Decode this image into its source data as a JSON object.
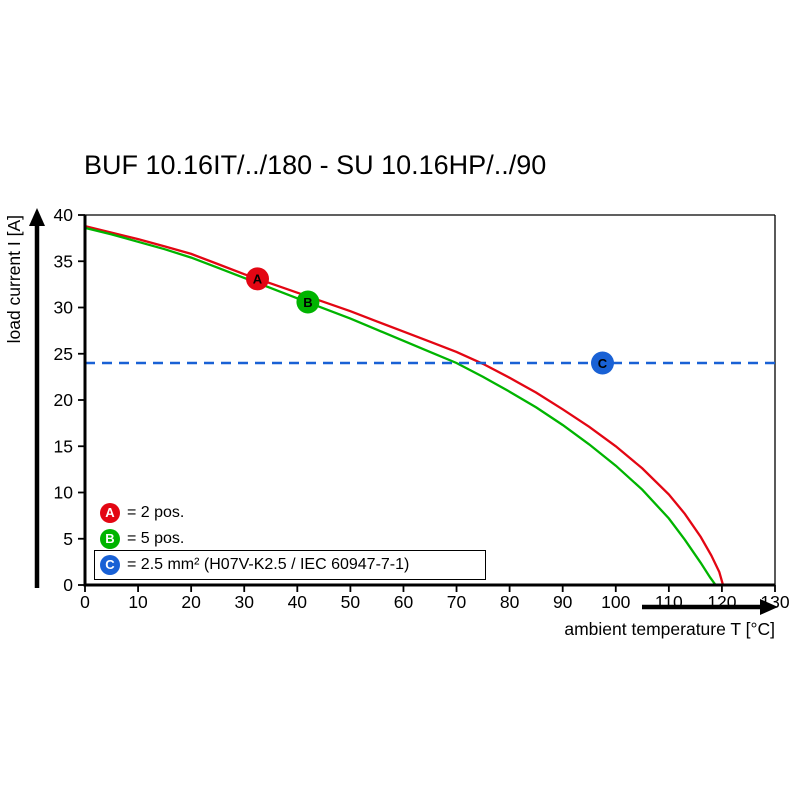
{
  "title": "BUF 10.16IT/../180 - SU 10.16HP/../90",
  "axes": {
    "xlabel": "ambient temperature T [°C]",
    "ylabel": "load current I [A]"
  },
  "legend": {
    "items": [
      {
        "label": "A",
        "color": "#e30613",
        "text": "= 2 pos."
      },
      {
        "label": "B",
        "color": "#00b400",
        "text": "= 5 pos."
      },
      {
        "label": "C",
        "color": "#1961d5",
        "text": "= 2.5 mm² (H07V-K2.5 / IEC 60947-7-1)"
      }
    ]
  },
  "chart_data": {
    "type": "line",
    "title": "BUF 10.16IT/../180 - SU 10.16HP/../90",
    "xlabel": "ambient temperature T [°C]",
    "ylabel": "load current I [A]",
    "xlim": [
      0,
      130
    ],
    "ylim": [
      0,
      40
    ],
    "x_ticks": [
      0,
      10,
      20,
      30,
      40,
      50,
      60,
      70,
      80,
      90,
      100,
      110,
      120,
      130
    ],
    "y_ticks": [
      0,
      5,
      10,
      15,
      20,
      25,
      30,
      35,
      40
    ],
    "grid": false,
    "legend_position": "bottom-left-inside",
    "series": [
      {
        "name": "A = 2 pos.",
        "color": "#e30613",
        "style": "solid",
        "points": [
          [
            0,
            38.8
          ],
          [
            5,
            38.1
          ],
          [
            10,
            37.4
          ],
          [
            15,
            36.6
          ],
          [
            20,
            35.8
          ],
          [
            25,
            34.7
          ],
          [
            30,
            33.6
          ],
          [
            35,
            32.6
          ],
          [
            40,
            31.6
          ],
          [
            45,
            30.6
          ],
          [
            50,
            29.6
          ],
          [
            55,
            28.5
          ],
          [
            60,
            27.4
          ],
          [
            65,
            26.3
          ],
          [
            70,
            25.2
          ],
          [
            75,
            23.9
          ],
          [
            80,
            22.4
          ],
          [
            85,
            20.8
          ],
          [
            90,
            19.0
          ],
          [
            95,
            17.1
          ],
          [
            100,
            15.0
          ],
          [
            105,
            12.6
          ],
          [
            110,
            9.8
          ],
          [
            113,
            7.7
          ],
          [
            116,
            5.2
          ],
          [
            118,
            3.2
          ],
          [
            119.5,
            1.4
          ],
          [
            120.2,
            0
          ]
        ]
      },
      {
        "name": "B = 5 pos.",
        "color": "#00b400",
        "style": "solid",
        "points": [
          [
            0,
            38.6
          ],
          [
            5,
            37.9
          ],
          [
            10,
            37.1
          ],
          [
            15,
            36.3
          ],
          [
            20,
            35.4
          ],
          [
            25,
            34.3
          ],
          [
            30,
            33.2
          ],
          [
            35,
            32.1
          ],
          [
            40,
            31.0
          ],
          [
            45,
            29.9
          ],
          [
            50,
            28.8
          ],
          [
            55,
            27.6
          ],
          [
            60,
            26.4
          ],
          [
            65,
            25.2
          ],
          [
            70,
            24.0
          ],
          [
            75,
            22.5
          ],
          [
            80,
            20.9
          ],
          [
            85,
            19.2
          ],
          [
            90,
            17.3
          ],
          [
            95,
            15.2
          ],
          [
            100,
            12.9
          ],
          [
            105,
            10.3
          ],
          [
            110,
            7.2
          ],
          [
            113,
            4.9
          ],
          [
            116,
            2.4
          ],
          [
            117.8,
            0.8
          ],
          [
            118.8,
            0
          ]
        ]
      },
      {
        "name": "C = 2.5 mm² (H07V-K2.5 / IEC 60947-7-1)",
        "color": "#1961d5",
        "style": "dashed",
        "points": [
          [
            0,
            24
          ],
          [
            130,
            24
          ]
        ]
      }
    ],
    "markers": [
      {
        "label": "A",
        "x": 32.5,
        "y": 33.1,
        "color": "#e30613"
      },
      {
        "label": "B",
        "x": 42,
        "y": 30.6,
        "color": "#00b400"
      },
      {
        "label": "C",
        "x": 97.5,
        "y": 24,
        "color": "#1961d5"
      }
    ]
  }
}
